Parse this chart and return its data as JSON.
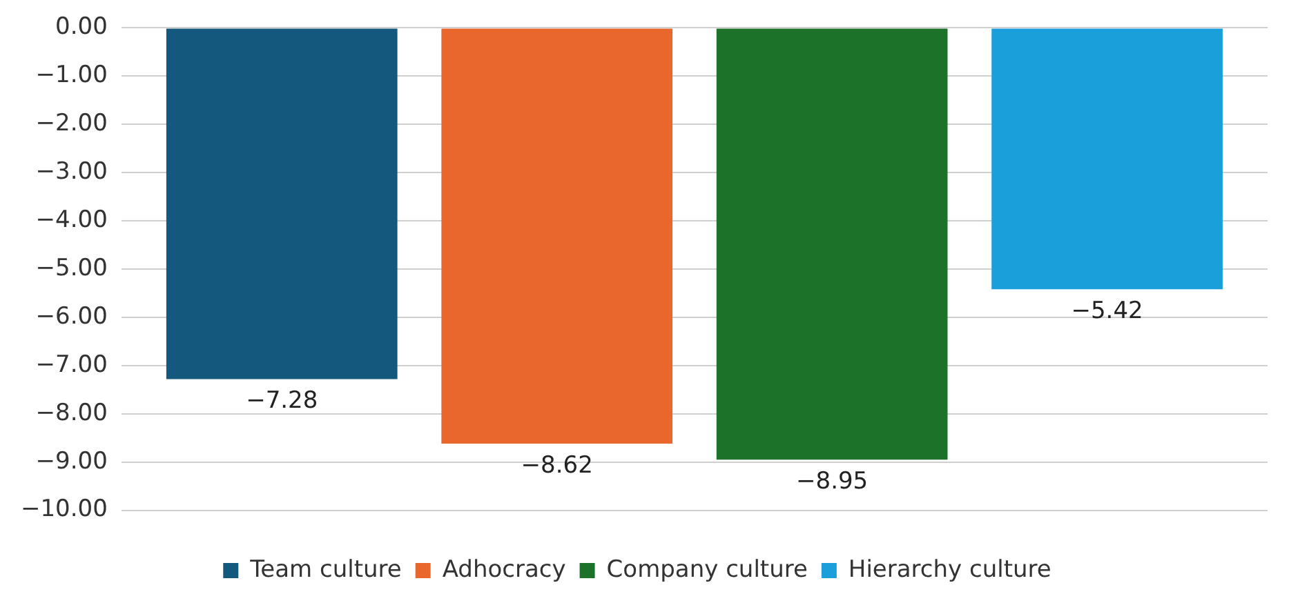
{
  "chart_data": {
    "type": "bar",
    "categories": [
      null
    ],
    "series": [
      {
        "name": "Team culture",
        "color": "#14587e",
        "values": [
          -7.28
        ],
        "value_labels": [
          "−7.28"
        ]
      },
      {
        "name": "Adhocracy",
        "color": "#e9672c",
        "values": [
          -8.62
        ],
        "value_labels": [
          "−8.62"
        ]
      },
      {
        "name": "Company culture",
        "color": "#1c7228",
        "values": [
          -8.95
        ],
        "value_labels": [
          "−8.95"
        ]
      },
      {
        "name": "Hierarchy culture",
        "color": "#1a9fdb",
        "values": [
          -5.42
        ],
        "value_labels": [
          "−5.42"
        ]
      }
    ],
    "ylim": [
      -10,
      0
    ],
    "yticks": [
      {
        "value": 0,
        "label": "0.00"
      },
      {
        "value": -1,
        "label": "−1.00"
      },
      {
        "value": -2,
        "label": "−2.00"
      },
      {
        "value": -3,
        "label": "−3.00"
      },
      {
        "value": -4,
        "label": "−4.00"
      },
      {
        "value": -5,
        "label": "−5.00"
      },
      {
        "value": -6,
        "label": "−6.00"
      },
      {
        "value": -7,
        "label": "−7.00"
      },
      {
        "value": -8,
        "label": "−8.00"
      },
      {
        "value": -9,
        "label": "−9.00"
      },
      {
        "value": -10,
        "label": "−10.00"
      }
    ],
    "grid": "y",
    "legend": "bottom"
  }
}
